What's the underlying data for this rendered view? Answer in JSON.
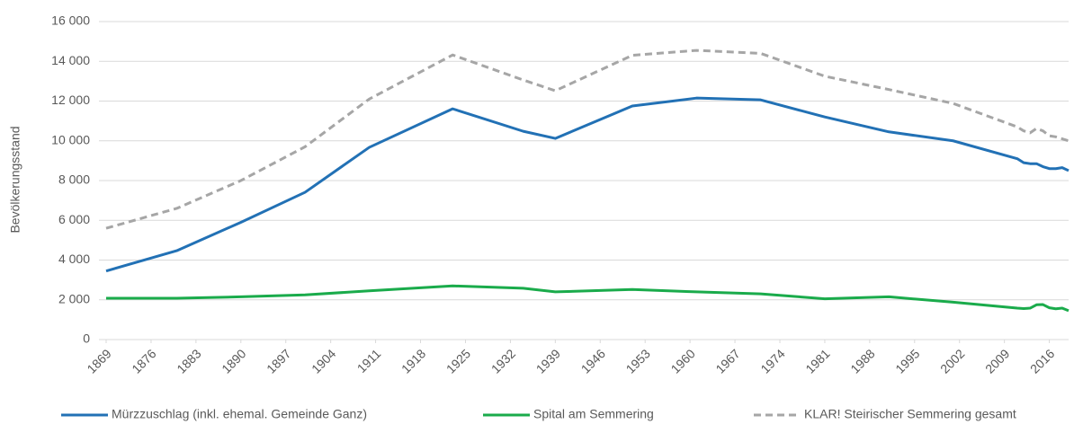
{
  "chart_data": {
    "type": "line",
    "y_label": "Bevölkerungsstand",
    "x": [
      1869,
      1880,
      1890,
      1900,
      1910,
      1923,
      1934,
      1939,
      1951,
      1961,
      1971,
      1981,
      1991,
      2001,
      2011,
      2012,
      2013,
      2014,
      2015,
      2016,
      2017,
      2018,
      2019
    ],
    "series": [
      {
        "name": "Mürzzuschlag (inkl. ehemal. Gemeinde Ganz)",
        "color": "#2271b5",
        "dash": false,
        "values": [
          3450,
          4470,
          5900,
          7410,
          9670,
          11610,
          10480,
          10120,
          11750,
          12150,
          12060,
          11200,
          10450,
          10000,
          9100,
          8900,
          8850,
          8850,
          8700,
          8600,
          8600,
          8650,
          8500
        ]
      },
      {
        "name": "Spital am Semmering",
        "color": "#1aab4b",
        "dash": false,
        "values": [
          2080,
          2080,
          2150,
          2250,
          2450,
          2700,
          2580,
          2400,
          2520,
          2400,
          2300,
          2050,
          2150,
          1880,
          1580,
          1560,
          1580,
          1750,
          1760,
          1600,
          1550,
          1580,
          1450
        ]
      },
      {
        "name": "KLAR! Steirischer Semmering gesamt",
        "color": "#a6a6a6",
        "dash": true,
        "values": [
          5600,
          6600,
          8000,
          9700,
          12100,
          14320,
          13060,
          12520,
          14300,
          14550,
          14400,
          13250,
          12580,
          11880,
          10700,
          10500,
          10400,
          10620,
          10500,
          10250,
          10200,
          10100,
          10000
        ]
      }
    ],
    "xlim": [
      1869,
      2019
    ],
    "xticks": [
      1869,
      1876,
      1883,
      1890,
      1897,
      1904,
      1911,
      1918,
      1925,
      1932,
      1939,
      1946,
      1953,
      1960,
      1967,
      1974,
      1981,
      1988,
      1995,
      2002,
      2009,
      2016
    ],
    "ylim": [
      0,
      16000
    ],
    "yticks": [
      0,
      {
        "value": 2000,
        "label": "2 000"
      },
      {
        "value": 4000,
        "label": "4 000"
      },
      {
        "value": 6000,
        "label": "6 000"
      },
      {
        "value": 8000,
        "label": "8 000"
      },
      {
        "value": 10000,
        "label": "10 000"
      },
      {
        "value": 12000,
        "label": "12 000"
      },
      {
        "value": 14000,
        "label": "14 000"
      },
      {
        "value": 16000,
        "label": "16 000"
      }
    ],
    "grid": true,
    "legend": "bottom"
  }
}
